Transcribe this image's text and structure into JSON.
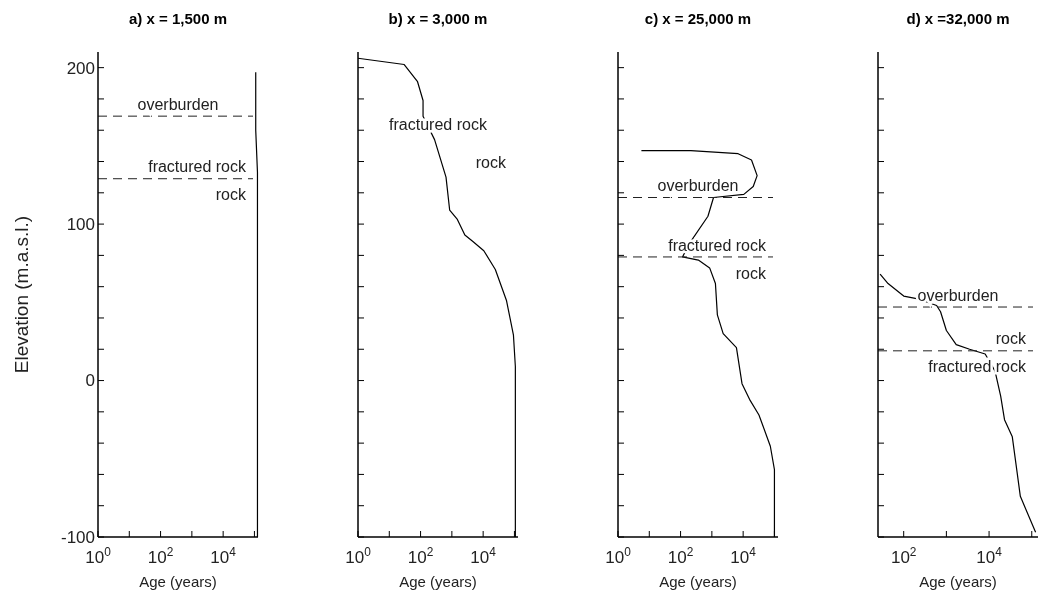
{
  "chart_data": [
    {
      "type": "line",
      "title": "a) x = 1,500 m",
      "xlabel": "Age (years)",
      "ylabel": "Elevation (m.a.s.l.)",
      "log": "x",
      "xlim": [
        1,
        130000
      ],
      "ylim": [
        -100,
        210
      ],
      "xticks": [
        {
          "value": 1,
          "label": "10$^{0}$"
        },
        {
          "value": 10,
          "label": null
        },
        {
          "value": 100,
          "label": "10$^{2}$"
        },
        {
          "value": 1000,
          "label": null
        },
        {
          "value": 10000,
          "label": "10$^{4}$"
        },
        {
          "value": 100000,
          "label": null
        }
      ],
      "yticks": [
        -100,
        {
          "value": -80,
          "label": null
        },
        {
          "value": -60,
          "label": null
        },
        {
          "value": -40,
          "label": null
        },
        {
          "value": -20,
          "label": null
        },
        0,
        {
          "value": 20,
          "label": null
        },
        {
          "value": 40,
          "label": null
        },
        {
          "value": 60,
          "label": null
        },
        {
          "value": 80,
          "label": null
        },
        100,
        {
          "value": 120,
          "label": null
        },
        {
          "value": 140,
          "label": null
        },
        {
          "value": 160,
          "label": null
        },
        {
          "value": 180,
          "label": null
        },
        200
      ],
      "series": [
        {
          "color": "#000000",
          "x": [
            110000,
            110000,
            125000,
            125000
          ],
          "values": [
            197,
            160,
            133,
            -100
          ]
        }
      ],
      "ref_lines": [
        {
          "axis": "y",
          "value": 169,
          "line_style": "dashed",
          "color": "#222222"
        },
        {
          "axis": "y",
          "value": 129,
          "line_style": "dashed",
          "color": "#222222"
        }
      ],
      "annotations": [
        "overburden",
        "fractured rock",
        "rock"
      ]
    },
    {
      "type": "line",
      "title": "b) x = 3,000 m",
      "xlabel": "Age (years)",
      "log": "x",
      "xlim": [
        1,
        130000
      ],
      "ylim": [
        -100,
        210
      ],
      "tick_labels": "x",
      "xticks": [
        {
          "value": 1,
          "label": "10$^{0}$"
        },
        {
          "value": 10,
          "label": null
        },
        {
          "value": 100,
          "label": "10$^{2}$"
        },
        {
          "value": 1000,
          "label": null
        },
        {
          "value": 10000,
          "label": "10$^{4}$"
        },
        {
          "value": 100000,
          "label": null
        }
      ],
      "yticks": [
        -100,
        {
          "value": -80,
          "label": null
        },
        {
          "value": -60,
          "label": null
        },
        {
          "value": -40,
          "label": null
        },
        {
          "value": -20,
          "label": null
        },
        0,
        {
          "value": 20,
          "label": null
        },
        {
          "value": 40,
          "label": null
        },
        {
          "value": 60,
          "label": null
        },
        {
          "value": 80,
          "label": null
        },
        100,
        {
          "value": 120,
          "label": null
        },
        {
          "value": 140,
          "label": null
        },
        {
          "value": 160,
          "label": null
        },
        {
          "value": 180,
          "label": null
        },
        200
      ],
      "series": [
        {
          "color": "#000000",
          "x": [
            1,
            30,
            80,
            120,
            120,
            280,
            650,
            850,
            1500,
            2600,
            4600,
            10500,
            24500,
            56000,
            93000,
            107000,
            107000
          ],
          "values": [
            206,
            202,
            191,
            179,
            169,
            154,
            130,
            109,
            103,
            93,
            89,
            83,
            71,
            51,
            29,
            9,
            -100
          ]
        }
      ],
      "annotations": [
        "fractured rock",
        "rock"
      ]
    },
    {
      "type": "line",
      "title": "c) x = 25,000 m",
      "xlabel": "Age (years)",
      "log": "x",
      "xlim": [
        1,
        130000
      ],
      "ylim": [
        -100,
        210
      ],
      "tick_labels": "x",
      "xticks": [
        {
          "value": 1,
          "label": "10$^{0}$"
        },
        {
          "value": 10,
          "label": null
        },
        {
          "value": 100,
          "label": "10$^{2}$"
        },
        {
          "value": 1000,
          "label": null
        },
        {
          "value": 10000,
          "label": "10$^{4}$"
        },
        {
          "value": 100000,
          "label": null
        }
      ],
      "yticks": [
        -100,
        {
          "value": -80,
          "label": null
        },
        {
          "value": -60,
          "label": null
        },
        {
          "value": -40,
          "label": null
        },
        {
          "value": -20,
          "label": null
        },
        0,
        {
          "value": 20,
          "label": null
        },
        {
          "value": 40,
          "label": null
        },
        {
          "value": 60,
          "label": null
        },
        {
          "value": 80,
          "label": null
        },
        100,
        {
          "value": 120,
          "label": null
        },
        {
          "value": 140,
          "label": null
        },
        {
          "value": 160,
          "label": null
        },
        {
          "value": 180,
          "label": null
        },
        200
      ],
      "series": [
        {
          "color": "#000000",
          "x": [
            5.6,
            213,
            6900,
            18500,
            28000,
            21000,
            10500,
            1130,
            750,
            213,
            115,
            370,
            850,
            1300,
            1500,
            2300,
            6100,
            9200,
            16000,
            32000,
            74000,
            100000,
            100000
          ],
          "values": [
            147,
            147,
            145,
            141,
            131,
            124,
            119,
            117,
            105,
            89,
            79,
            77,
            72,
            62,
            42,
            30,
            21,
            -2,
            -12,
            -22,
            -42,
            -57,
            -100
          ]
        }
      ],
      "ref_lines": [
        {
          "axis": "y",
          "value": 117,
          "line_style": "dashed",
          "color": "#222222"
        },
        {
          "axis": "y",
          "value": 79,
          "line_style": "dashed",
          "color": "#222222"
        }
      ],
      "annotations": [
        "overburden",
        "fractured rock",
        "rock"
      ]
    },
    {
      "type": "line",
      "title": "d) x =32,000 m",
      "xlabel": "Age (years)",
      "log": "x",
      "xlim": [
        25,
        140000
      ],
      "ylim": [
        -100,
        210
      ],
      "tick_labels": "x",
      "xticks": [
        {
          "value": 100,
          "label": "10$^{2}$"
        },
        {
          "value": 1000,
          "label": null
        },
        {
          "value": 10000,
          "label": "10$^{4}$"
        },
        {
          "value": 100000,
          "label": null
        }
      ],
      "yticks": [
        -100,
        {
          "value": -80,
          "label": null
        },
        {
          "value": -60,
          "label": null
        },
        {
          "value": -40,
          "label": null
        },
        {
          "value": -20,
          "label": null
        },
        0,
        {
          "value": 20,
          "label": null
        },
        {
          "value": 40,
          "label": null
        },
        {
          "value": 60,
          "label": null
        },
        {
          "value": 80,
          "label": null
        },
        100,
        {
          "value": 120,
          "label": null
        },
        {
          "value": 140,
          "label": null
        },
        {
          "value": 160,
          "label": null
        },
        {
          "value": 180,
          "label": null
        },
        200
      ],
      "series": [
        {
          "color": "#000000",
          "x": [
            28,
            43,
            100,
            230,
            590,
            730,
            1000,
            1700,
            3500,
            8100,
            13800,
            18700,
            23000,
            35000,
            54000,
            123000
          ],
          "values": [
            68,
            62,
            54,
            52,
            48,
            44,
            32,
            23,
            20,
            17,
            6,
            -10,
            -25,
            -36,
            -74,
            -97
          ]
        }
      ],
      "ref_lines": [
        {
          "axis": "y",
          "value": 47,
          "line_style": "dashed",
          "color": "#222222"
        },
        {
          "axis": "y",
          "value": 19,
          "line_style": "dashed",
          "color": "#222222"
        }
      ],
      "annotations": [
        "overburden",
        "rock",
        "fractured rock"
      ]
    }
  ]
}
